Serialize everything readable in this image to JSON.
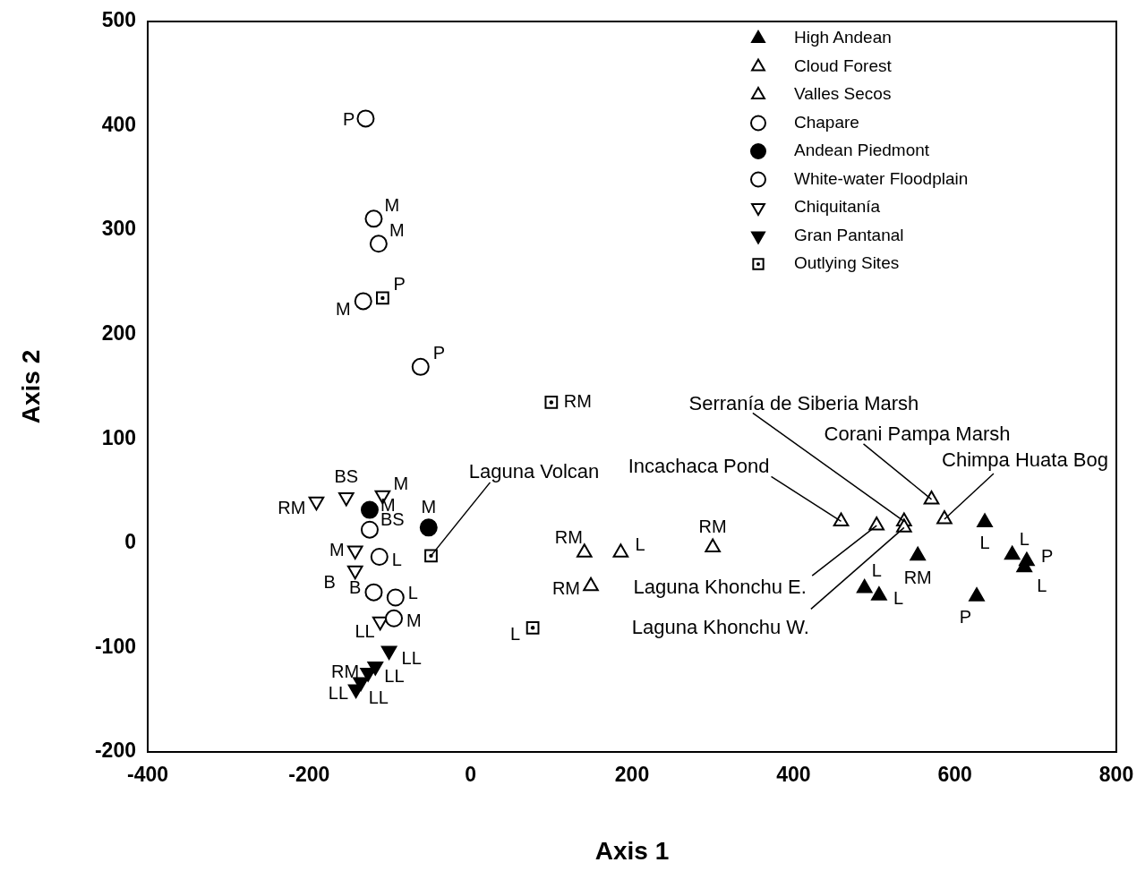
{
  "chart_data": {
    "type": "scatter",
    "xlabel": "Axis 1",
    "ylabel": "Axis 2",
    "xlim": [
      -400,
      800
    ],
    "ylim": [
      -200,
      500
    ],
    "xticks": [
      -400,
      -200,
      0,
      200,
      400,
      600,
      800
    ],
    "yticks": [
      -200,
      -100,
      0,
      100,
      200,
      300,
      400,
      500
    ],
    "grid": false,
    "legend": "top right",
    "series": [
      {
        "name": "High Andean",
        "color": "#000000",
        "marker": "triangle",
        "x": [
          637,
          554,
          671,
          689,
          686,
          488,
          506,
          627
        ],
        "values": [
          20,
          -12,
          -11,
          -17,
          -23,
          -43,
          -50,
          -51
        ],
        "value_labels": [
          "L",
          "RM",
          "L",
          "P",
          "L",
          "L",
          "L",
          "P"
        ]
      },
      {
        "name": "Cloud Forest",
        "color": "#000000",
        "marker": "triangle-open",
        "x": [
          459,
          503,
          537,
          537,
          571,
          587
        ],
        "values": [
          21,
          17,
          21,
          15,
          42,
          23
        ]
      },
      {
        "name": "Valles Secos",
        "color": "#000000",
        "marker": "triangle-open",
        "x": [
          141,
          186,
          300,
          149
        ],
        "values": [
          -9,
          -9,
          -4,
          -41
        ],
        "value_labels": [
          "RM",
          "L",
          "RM",
          "RM"
        ]
      },
      {
        "name": "Chapare",
        "color": "#000000",
        "marker": "circle-open",
        "x": [
          -130,
          -120,
          -114,
          -133,
          -62
        ],
        "values": [
          407,
          311,
          287,
          232,
          169
        ],
        "value_labels": [
          "P",
          "M",
          "M",
          "M",
          "P"
        ]
      },
      {
        "name": "Andean Piedmont",
        "color": "#000000",
        "marker": "circle",
        "x": [
          -125,
          -52
        ],
        "values": [
          32,
          15
        ],
        "value_labels": [
          "M",
          "M"
        ]
      },
      {
        "name": "White-water Floodplain",
        "color": "#000000",
        "marker": "circle-open",
        "x": [
          -125,
          -113,
          -120,
          -93,
          -95
        ],
        "values": [
          13,
          -13,
          -47,
          -52,
          -72
        ],
        "value_labels": [
          "BS",
          "L",
          "B",
          "L",
          "M"
        ]
      },
      {
        "name": "Chiquitanía",
        "color": "#000000",
        "marker": "triangle-down-open",
        "x": [
          -191,
          -154,
          -109,
          -143,
          -143,
          -112
        ],
        "values": [
          40,
          44,
          46,
          -7,
          -26,
          -75
        ],
        "value_labels": [
          "RM",
          "BS",
          "M",
          "M",
          "B",
          "LL"
        ]
      },
      {
        "name": "Gran Pantanal",
        "color": "#000000",
        "marker": "triangle-down",
        "x": [
          -101,
          -118,
          -127,
          -136,
          -142
        ],
        "values": [
          -103,
          -118,
          -124,
          -133,
          -140
        ],
        "value_labels": [
          "LL",
          "LL",
          "RM",
          "LL",
          "LL"
        ]
      },
      {
        "name": "Outlying Sites",
        "color": "#000000",
        "marker": "square-dot",
        "x": [
          -109,
          100,
          -49,
          77
        ],
        "values": [
          235,
          135,
          -12,
          -81
        ],
        "value_labels": [
          "P",
          "RM",
          null,
          "L"
        ]
      }
    ],
    "annotations": [
      {
        "text": "Laguna Volcan",
        "x": -49,
        "y": -12
      },
      {
        "text": "Incachaca Pond",
        "x": 459,
        "y": 21
      },
      {
        "text": "Serranía de Siberia Marsh",
        "x": 537,
        "y": 21
      },
      {
        "text": "Corani Pampa Marsh",
        "x": 571,
        "y": 42
      },
      {
        "text": "Chimpa Huata Bog",
        "x": 587,
        "y": 23
      },
      {
        "text": "Laguna Khonchu E.",
        "x": 503,
        "y": 17
      },
      {
        "text": "Laguna Khonchu W.",
        "x": 537,
        "y": 15
      }
    ]
  }
}
